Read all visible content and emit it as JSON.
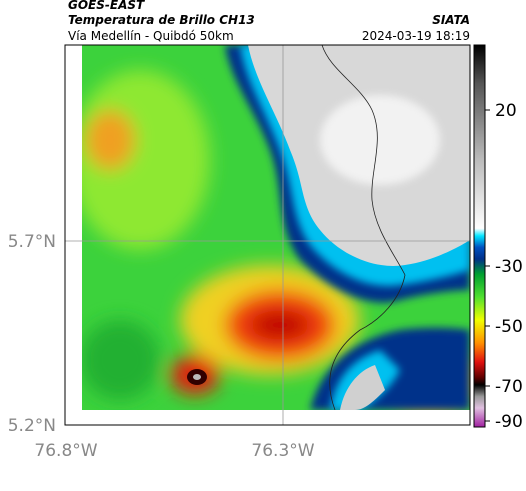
{
  "header": {
    "satellite": "GOES-EAST",
    "product": "Temperatura de Brillo CH13",
    "source": "SIATA",
    "region": "Vía Medellín - Quibdó 50km",
    "datetime": "2024-03-19 18:19"
  },
  "map": {
    "lat_labels": [
      "5.7°N",
      "5.2°N"
    ],
    "lon_labels": [
      "76.8°W",
      "76.3°W"
    ]
  },
  "colorbar": {
    "tick_labels": [
      "20",
      "-30",
      "-50",
      "-70",
      "-90"
    ]
  }
}
